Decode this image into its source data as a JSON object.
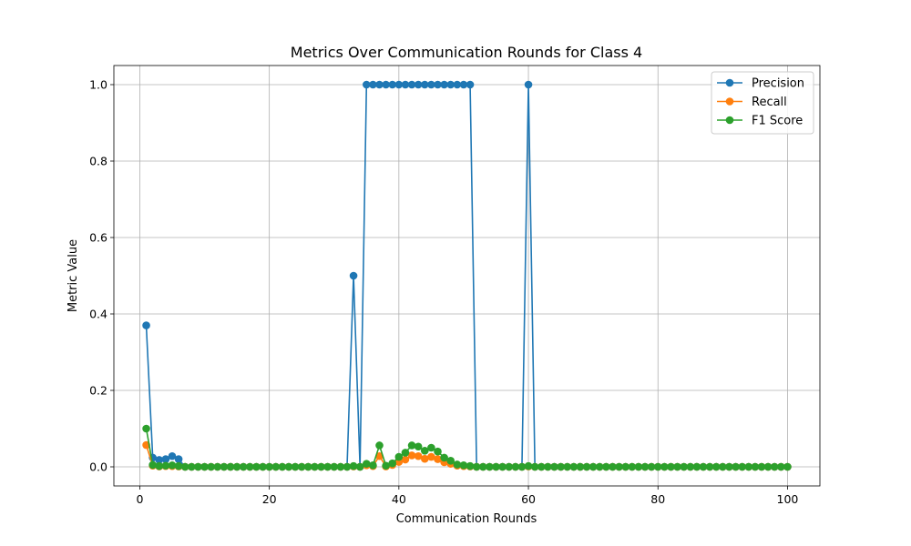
{
  "chart_data": {
    "type": "line",
    "title": "Metrics Over Communication Rounds for Class 4",
    "xlabel": "Communication Rounds",
    "ylabel": "Metric Value",
    "xlim": [
      -4,
      105
    ],
    "ylim": [
      -0.05,
      1.05
    ],
    "xticks": [
      0,
      20,
      40,
      60,
      80,
      100
    ],
    "yticks": [
      0.0,
      0.2,
      0.4,
      0.6,
      0.8,
      1.0
    ],
    "grid": true,
    "legend_position": "top-right",
    "x": [
      1,
      2,
      3,
      4,
      5,
      6,
      7,
      8,
      9,
      10,
      11,
      12,
      13,
      14,
      15,
      16,
      17,
      18,
      19,
      20,
      21,
      22,
      23,
      24,
      25,
      26,
      27,
      28,
      29,
      30,
      31,
      32,
      33,
      34,
      35,
      36,
      37,
      38,
      39,
      40,
      41,
      42,
      43,
      44,
      45,
      46,
      47,
      48,
      49,
      50,
      51,
      52,
      53,
      54,
      55,
      56,
      57,
      58,
      59,
      60,
      61,
      62,
      63,
      64,
      65,
      66,
      67,
      68,
      69,
      70,
      71,
      72,
      73,
      74,
      75,
      76,
      77,
      78,
      79,
      80,
      81,
      82,
      83,
      84,
      85,
      86,
      87,
      88,
      89,
      90,
      91,
      92,
      93,
      94,
      95,
      96,
      97,
      98,
      99,
      100
    ],
    "series": [
      {
        "name": "Precision",
        "color": "#1f77b4",
        "values": [
          0.37,
          0.024,
          0.018,
          0.02,
          0.028,
          0.02,
          0,
          0,
          0,
          0,
          0,
          0,
          0,
          0,
          0,
          0,
          0,
          0,
          0,
          0,
          0,
          0,
          0,
          0,
          0,
          0,
          0,
          0,
          0,
          0,
          0,
          0,
          0.5,
          0,
          1,
          1,
          1,
          1,
          1,
          1,
          1,
          1,
          1,
          1,
          1,
          1,
          1,
          1,
          1,
          1,
          1,
          0,
          0,
          0,
          0,
          0,
          0,
          0,
          0,
          1,
          0,
          0,
          0,
          0,
          0,
          0,
          0,
          0,
          0,
          0,
          0,
          0,
          0,
          0,
          0,
          0,
          0,
          0,
          0,
          0,
          0,
          0,
          0,
          0,
          0,
          0,
          0,
          0,
          0,
          0,
          0,
          0,
          0,
          0,
          0,
          0,
          0,
          0,
          0,
          0
        ]
      },
      {
        "name": "Recall",
        "color": "#ff7f0e",
        "values": [
          0.057,
          0.003,
          0.001,
          0.002,
          0.002,
          0.001,
          0,
          0,
          0,
          0,
          0,
          0,
          0,
          0,
          0,
          0,
          0,
          0,
          0,
          0,
          0,
          0,
          0,
          0,
          0,
          0,
          0,
          0,
          0,
          0,
          0,
          0,
          0.001,
          0,
          0.004,
          0.002,
          0.028,
          0.001,
          0.005,
          0.013,
          0.019,
          0.03,
          0.028,
          0.021,
          0.026,
          0.02,
          0.012,
          0.008,
          0.003,
          0.002,
          0.001,
          0,
          0,
          0,
          0,
          0,
          0,
          0,
          0,
          0.001,
          0,
          0,
          0,
          0,
          0,
          0,
          0,
          0,
          0,
          0,
          0,
          0,
          0,
          0,
          0,
          0,
          0,
          0,
          0,
          0,
          0,
          0,
          0,
          0,
          0,
          0,
          0,
          0,
          0,
          0,
          0,
          0,
          0,
          0,
          0,
          0,
          0,
          0,
          0,
          0
        ]
      },
      {
        "name": "F1 Score",
        "color": "#2ca02c",
        "values": [
          0.1,
          0.005,
          0.002,
          0.003,
          0.004,
          0.002,
          0,
          0,
          0,
          0,
          0,
          0,
          0,
          0,
          0,
          0,
          0,
          0,
          0,
          0,
          0,
          0,
          0,
          0,
          0,
          0,
          0,
          0,
          0,
          0,
          0,
          0,
          0.002,
          0,
          0.008,
          0.004,
          0.056,
          0.003,
          0.009,
          0.026,
          0.037,
          0.056,
          0.053,
          0.042,
          0.05,
          0.04,
          0.024,
          0.016,
          0.006,
          0.004,
          0.002,
          0,
          0,
          0,
          0,
          0,
          0,
          0,
          0,
          0.002,
          0,
          0,
          0,
          0,
          0,
          0,
          0,
          0,
          0,
          0,
          0,
          0,
          0,
          0,
          0,
          0,
          0,
          0,
          0,
          0,
          0,
          0,
          0,
          0,
          0,
          0,
          0,
          0,
          0,
          0,
          0,
          0,
          0,
          0,
          0,
          0,
          0,
          0,
          0,
          0
        ]
      }
    ]
  }
}
